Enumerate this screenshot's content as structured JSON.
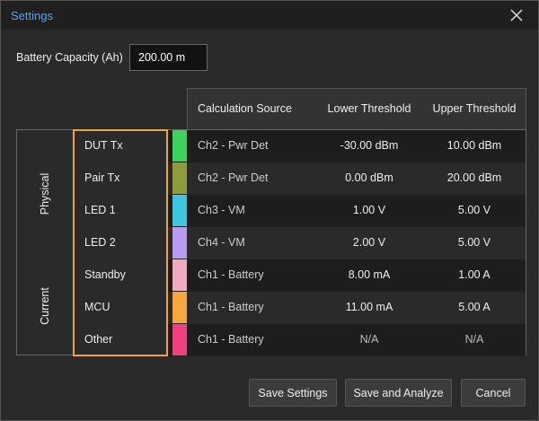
{
  "dialog": {
    "title": "Settings",
    "battery": {
      "label": "Battery Capacity (Ah)",
      "value": "200.00 m"
    },
    "table": {
      "headers": [
        "Calculation Source",
        "Lower Threshold",
        "Upper Threshold"
      ],
      "groups": [
        "Physical",
        "Current"
      ],
      "rows": [
        {
          "name": "DUT Tx",
          "color": "#3cd35a",
          "source": "Ch2 - Pwr Det",
          "lower": "-30.00 dBm",
          "upper": "10.00 dBm"
        },
        {
          "name": "Pair Tx",
          "color": "#8f9c3c",
          "source": "Ch2 - Pwr Det",
          "lower": "0.00 dBm",
          "upper": "20.00 dBm"
        },
        {
          "name": "LED 1",
          "color": "#3ec6e0",
          "source": "Ch3 - VM",
          "lower": "1.00 V",
          "upper": "5.00 V"
        },
        {
          "name": "LED 2",
          "color": "#b99cf2",
          "source": "Ch4 - VM",
          "lower": "2.00 V",
          "upper": "5.00 V"
        },
        {
          "name": "Standby",
          "color": "#f2aac2",
          "source": "Ch1 - Battery",
          "lower": "8.00 mA",
          "upper": "1.00 A"
        },
        {
          "name": "MCU",
          "color": "#f5a742",
          "source": "Ch1 - Battery",
          "lower": "11.00 mA",
          "upper": "5.00 A"
        },
        {
          "name": "Other",
          "color": "#f0407f",
          "source": "Ch1 - Battery",
          "lower": "N/A",
          "upper": "N/A"
        }
      ]
    },
    "buttons": [
      "Save Settings",
      "Save and Analyze",
      "Cancel"
    ]
  }
}
